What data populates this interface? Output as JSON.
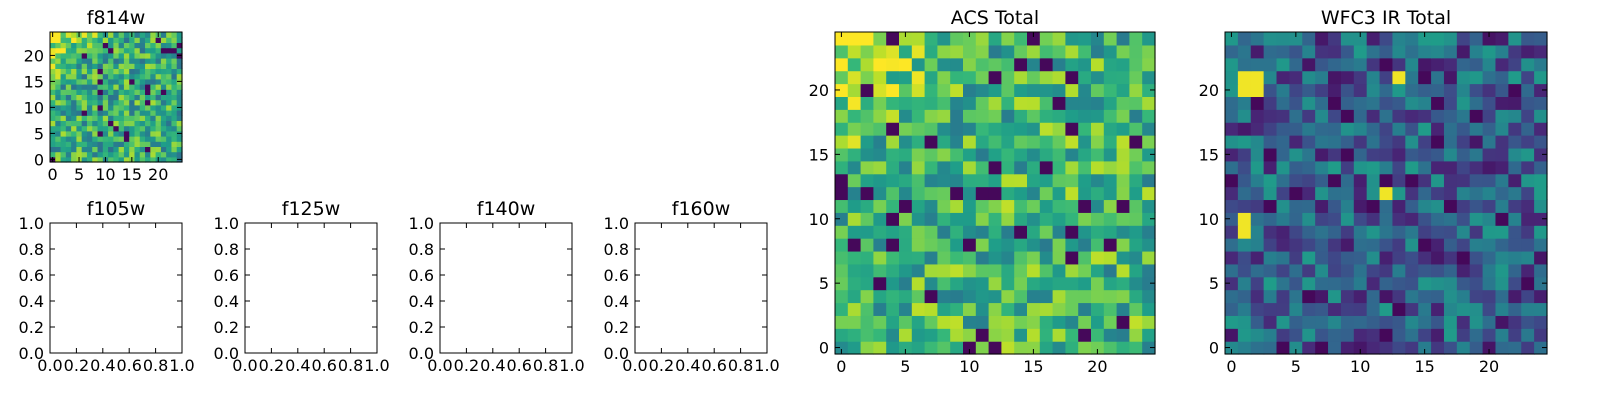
{
  "chart_data": [
    {
      "type": "heatmap",
      "title": "f814w",
      "grid_size": 25,
      "xlim": [
        -0.5,
        24.5
      ],
      "ylim": [
        -0.5,
        24.5
      ],
      "xticks": [
        "0",
        "5",
        "10",
        "15",
        "20"
      ],
      "yticks": [
        "0",
        "5",
        "10",
        "15",
        "20"
      ],
      "colormap": "viridis",
      "seed": 1,
      "brightness": 0.62,
      "corner_boost": 0.3
    },
    {
      "type": "line",
      "title": "f105w",
      "xlim": [
        0,
        1
      ],
      "ylim": [
        0,
        1
      ],
      "xticks": [
        "0.0",
        "0.2",
        "0.4",
        "0.6",
        "0.8",
        "1.0"
      ],
      "yticks": [
        "0.0",
        "0.2",
        "0.4",
        "0.6",
        "0.8",
        "1.0"
      ],
      "series": []
    },
    {
      "type": "line",
      "title": "f125w",
      "xlim": [
        0,
        1
      ],
      "ylim": [
        0,
        1
      ],
      "xticks": [
        "0.0",
        "0.2",
        "0.4",
        "0.6",
        "0.8",
        "1.0"
      ],
      "yticks": [
        "0.0",
        "0.2",
        "0.4",
        "0.6",
        "0.8",
        "1.0"
      ],
      "series": []
    },
    {
      "type": "line",
      "title": "f140w",
      "xlim": [
        0,
        1
      ],
      "ylim": [
        0,
        1
      ],
      "xticks": [
        "0.0",
        "0.2",
        "0.4",
        "0.6",
        "0.8",
        "1.0"
      ],
      "yticks": [
        "0.0",
        "0.2",
        "0.4",
        "0.6",
        "0.8",
        "1.0"
      ],
      "series": []
    },
    {
      "type": "line",
      "title": "f160w",
      "xlim": [
        0,
        1
      ],
      "ylim": [
        0,
        1
      ],
      "xticks": [
        "0.0",
        "0.2",
        "0.4",
        "0.6",
        "0.8",
        "1.0"
      ],
      "yticks": [
        "0.0",
        "0.2",
        "0.4",
        "0.6",
        "0.8",
        "1.0"
      ],
      "series": []
    },
    {
      "type": "heatmap",
      "title": "ACS Total",
      "grid_size": 25,
      "xlim": [
        -0.5,
        24.5
      ],
      "ylim": [
        -0.5,
        24.5
      ],
      "xticks": [
        "0",
        "5",
        "10",
        "15",
        "20"
      ],
      "yticks": [
        "0",
        "5",
        "10",
        "15",
        "20"
      ],
      "colormap": "viridis",
      "seed": 7,
      "brightness": 0.66,
      "corner_boost": 0.3
    },
    {
      "type": "heatmap",
      "title": "WFC3 IR Total",
      "grid_size": 25,
      "xlim": [
        -0.5,
        24.5
      ],
      "ylim": [
        -0.5,
        24.5
      ],
      "xticks": [
        "0",
        "5",
        "10",
        "15",
        "20"
      ],
      "yticks": [
        "0",
        "5",
        "10",
        "15",
        "20"
      ],
      "colormap": "viridis",
      "seed": 13,
      "brightness": 0.3,
      "corner_boost": 0.0,
      "hot_pixels": [
        [
          1,
          21
        ],
        [
          2,
          20
        ],
        [
          1,
          20
        ],
        [
          2,
          21
        ],
        [
          13,
          21
        ],
        [
          12,
          12
        ],
        [
          1,
          10
        ],
        [
          1,
          9
        ]
      ]
    }
  ]
}
